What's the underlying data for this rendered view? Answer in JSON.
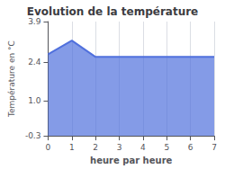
{
  "chart_data": {
    "type": "area",
    "title": "Evolution de la température",
    "xlabel": "heure par heure",
    "ylabel": "Température en °C",
    "x": [
      0,
      1,
      2,
      3,
      4,
      5,
      6,
      7
    ],
    "values": [
      2.7,
      3.2,
      2.6,
      2.6,
      2.6,
      2.6,
      2.6,
      2.6
    ],
    "xlim": [
      0,
      7
    ],
    "xticks": [
      0,
      1,
      2,
      3,
      4,
      5,
      6,
      7
    ],
    "ylim": [
      -0.3,
      3.9
    ],
    "yticks": [
      -0.3,
      {
        "value": 1.0,
        "label": "1.0"
      },
      2.4,
      3.9
    ],
    "grid": "x"
  }
}
